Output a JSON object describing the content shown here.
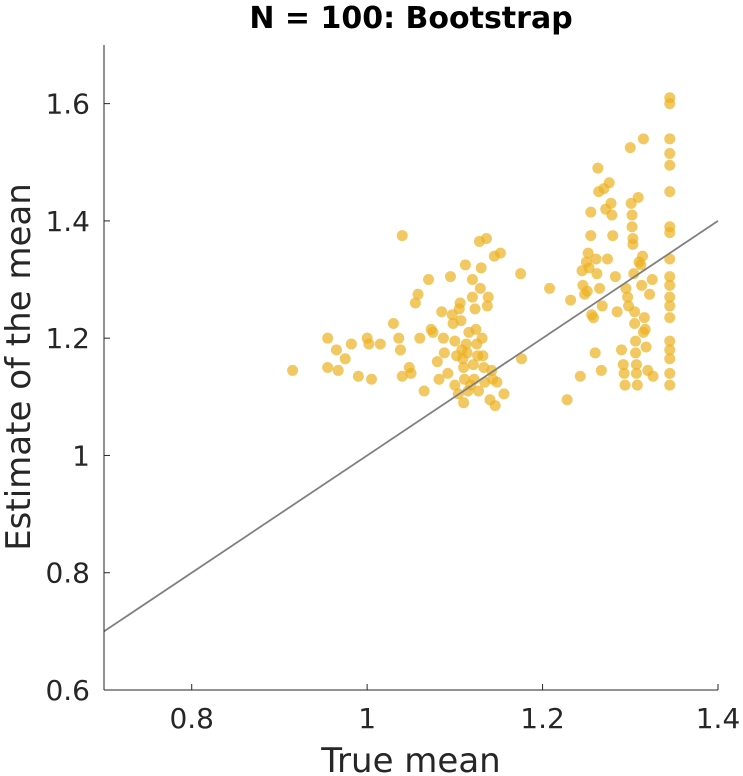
{
  "chart_data": {
    "type": "scatter",
    "title": "N = 100: Bootstrap",
    "xlabel": "True mean",
    "ylabel": "Estimate of the mean",
    "xlim": [
      0.7,
      1.4
    ],
    "ylim": [
      0.6,
      1.7
    ],
    "x_ticks": [
      0.8,
      1,
      1.2,
      1.4
    ],
    "x_tick_labels": [
      "0.8",
      "1",
      "1.2",
      "1.4"
    ],
    "y_ticks": [
      0.6,
      0.8,
      1,
      1.2,
      1.4,
      1.6
    ],
    "y_tick_labels": [
      "0.6",
      "0.8",
      "1",
      "1.2",
      "1.4",
      "1.6"
    ],
    "grid": false,
    "marker_color": "#EDB120",
    "reference_line": {
      "x": [
        0.7,
        1.4
      ],
      "y": [
        0.7,
        1.4
      ],
      "color": "#808080"
    },
    "series": [
      {
        "points": [
          [
            0.915,
            1.145
          ],
          [
            0.955,
            1.2
          ],
          [
            0.955,
            1.15
          ],
          [
            0.965,
            1.18
          ],
          [
            0.967,
            1.145
          ],
          [
            0.975,
            1.165
          ],
          [
            0.982,
            1.19
          ],
          [
            0.99,
            1.135
          ],
          [
            1.0,
            1.2
          ],
          [
            1.002,
            1.19
          ],
          [
            1.005,
            1.13
          ],
          [
            1.015,
            1.19
          ],
          [
            1.03,
            1.225
          ],
          [
            1.036,
            1.2
          ],
          [
            1.038,
            1.18
          ],
          [
            1.04,
            1.375
          ],
          [
            1.04,
            1.135
          ],
          [
            1.048,
            1.15
          ],
          [
            1.05,
            1.14
          ],
          [
            1.055,
            1.26
          ],
          [
            1.058,
            1.275
          ],
          [
            1.06,
            1.2
          ],
          [
            1.065,
            1.11
          ],
          [
            1.07,
            1.3
          ],
          [
            1.073,
            1.215
          ],
          [
            1.075,
            1.21
          ],
          [
            1.08,
            1.16
          ],
          [
            1.082,
            1.13
          ],
          [
            1.085,
            1.245
          ],
          [
            1.087,
            1.2
          ],
          [
            1.088,
            1.175
          ],
          [
            1.092,
            1.14
          ],
          [
            1.095,
            1.305
          ],
          [
            1.097,
            1.24
          ],
          [
            1.098,
            1.225
          ],
          [
            1.1,
            1.195
          ],
          [
            1.1,
            1.12
          ],
          [
            1.102,
            1.17
          ],
          [
            1.104,
            1.105
          ],
          [
            1.105,
            1.25
          ],
          [
            1.106,
            1.26
          ],
          [
            1.107,
            1.23
          ],
          [
            1.108,
            1.18
          ],
          [
            1.109,
            1.165
          ],
          [
            1.11,
            1.15
          ],
          [
            1.11,
            1.09
          ],
          [
            1.111,
            1.13
          ],
          [
            1.112,
            1.325
          ],
          [
            1.113,
            1.19
          ],
          [
            1.114,
            1.175
          ],
          [
            1.115,
            1.11
          ],
          [
            1.116,
            1.21
          ],
          [
            1.118,
            1.12
          ],
          [
            1.12,
            1.3
          ],
          [
            1.12,
            1.27
          ],
          [
            1.121,
            1.155
          ],
          [
            1.122,
            1.13
          ],
          [
            1.123,
            1.25
          ],
          [
            1.124,
            1.215
          ],
          [
            1.125,
            1.19
          ],
          [
            1.126,
            1.17
          ],
          [
            1.127,
            1.11
          ],
          [
            1.128,
            1.365
          ],
          [
            1.129,
            1.285
          ],
          [
            1.13,
            1.32
          ],
          [
            1.131,
            1.2
          ],
          [
            1.132,
            1.17
          ],
          [
            1.133,
            1.15
          ],
          [
            1.134,
            1.125
          ],
          [
            1.136,
            1.37
          ],
          [
            1.137,
            1.255
          ],
          [
            1.138,
            1.27
          ],
          [
            1.14,
            1.095
          ],
          [
            1.142,
            1.145
          ],
          [
            1.143,
            1.13
          ],
          [
            1.145,
            1.34
          ],
          [
            1.146,
            1.085
          ],
          [
            1.148,
            1.125
          ],
          [
            1.152,
            1.345
          ],
          [
            1.156,
            1.105
          ],
          [
            1.175,
            1.31
          ],
          [
            1.176,
            1.165
          ],
          [
            1.208,
            1.285
          ],
          [
            1.228,
            1.095
          ],
          [
            1.232,
            1.265
          ],
          [
            1.243,
            1.135
          ],
          [
            1.245,
            1.315
          ],
          [
            1.246,
            1.29
          ],
          [
            1.248,
            1.275
          ],
          [
            1.25,
            1.33
          ],
          [
            1.251,
            1.28
          ],
          [
            1.252,
            1.345
          ],
          [
            1.253,
            1.32
          ],
          [
            1.255,
            1.415
          ],
          [
            1.255,
            1.375
          ],
          [
            1.256,
            1.24
          ],
          [
            1.258,
            1.235
          ],
          [
            1.26,
            1.175
          ],
          [
            1.261,
            1.335
          ],
          [
            1.262,
            1.31
          ],
          [
            1.263,
            1.49
          ],
          [
            1.264,
            1.45
          ],
          [
            1.265,
            1.285
          ],
          [
            1.267,
            1.145
          ],
          [
            1.268,
            1.255
          ],
          [
            1.27,
            1.455
          ],
          [
            1.272,
            1.42
          ],
          [
            1.274,
            1.335
          ],
          [
            1.276,
            1.465
          ],
          [
            1.278,
            1.43
          ],
          [
            1.279,
            1.41
          ],
          [
            1.28,
            1.375
          ],
          [
            1.283,
            1.305
          ],
          [
            1.285,
            1.245
          ],
          [
            1.29,
            1.18
          ],
          [
            1.292,
            1.155
          ],
          [
            1.293,
            1.14
          ],
          [
            1.294,
            1.12
          ],
          [
            1.295,
            1.285
          ],
          [
            1.297,
            1.27
          ],
          [
            1.298,
            1.255
          ],
          [
            1.3,
            1.525
          ],
          [
            1.301,
            1.43
          ],
          [
            1.302,
            1.41
          ],
          [
            1.302,
            1.39
          ],
          [
            1.303,
            1.37
          ],
          [
            1.303,
            1.36
          ],
          [
            1.304,
            1.31
          ],
          [
            1.305,
            1.245
          ],
          [
            1.305,
            1.225
          ],
          [
            1.306,
            1.195
          ],
          [
            1.306,
            1.175
          ],
          [
            1.307,
            1.155
          ],
          [
            1.307,
            1.14
          ],
          [
            1.308,
            1.12
          ],
          [
            1.309,
            1.44
          ],
          [
            1.31,
            1.33
          ],
          [
            1.312,
            1.325
          ],
          [
            1.313,
            1.29
          ],
          [
            1.314,
            1.34
          ],
          [
            1.315,
            1.54
          ],
          [
            1.315,
            1.21
          ],
          [
            1.316,
            1.235
          ],
          [
            1.317,
            1.215
          ],
          [
            1.318,
            1.185
          ],
          [
            1.32,
            1.145
          ],
          [
            1.322,
            1.275
          ],
          [
            1.325,
            1.3
          ],
          [
            1.326,
            1.135
          ],
          [
            1.345,
            1.61
          ],
          [
            1.345,
            1.6
          ],
          [
            1.345,
            1.54
          ],
          [
            1.345,
            1.515
          ],
          [
            1.345,
            1.495
          ],
          [
            1.345,
            1.45
          ],
          [
            1.345,
            1.39
          ],
          [
            1.345,
            1.38
          ],
          [
            1.345,
            1.335
          ],
          [
            1.345,
            1.305
          ],
          [
            1.345,
            1.29
          ],
          [
            1.345,
            1.27
          ],
          [
            1.345,
            1.255
          ],
          [
            1.345,
            1.235
          ],
          [
            1.345,
            1.195
          ],
          [
            1.345,
            1.18
          ],
          [
            1.345,
            1.165
          ],
          [
            1.345,
            1.14
          ],
          [
            1.345,
            1.12
          ]
        ]
      }
    ]
  }
}
